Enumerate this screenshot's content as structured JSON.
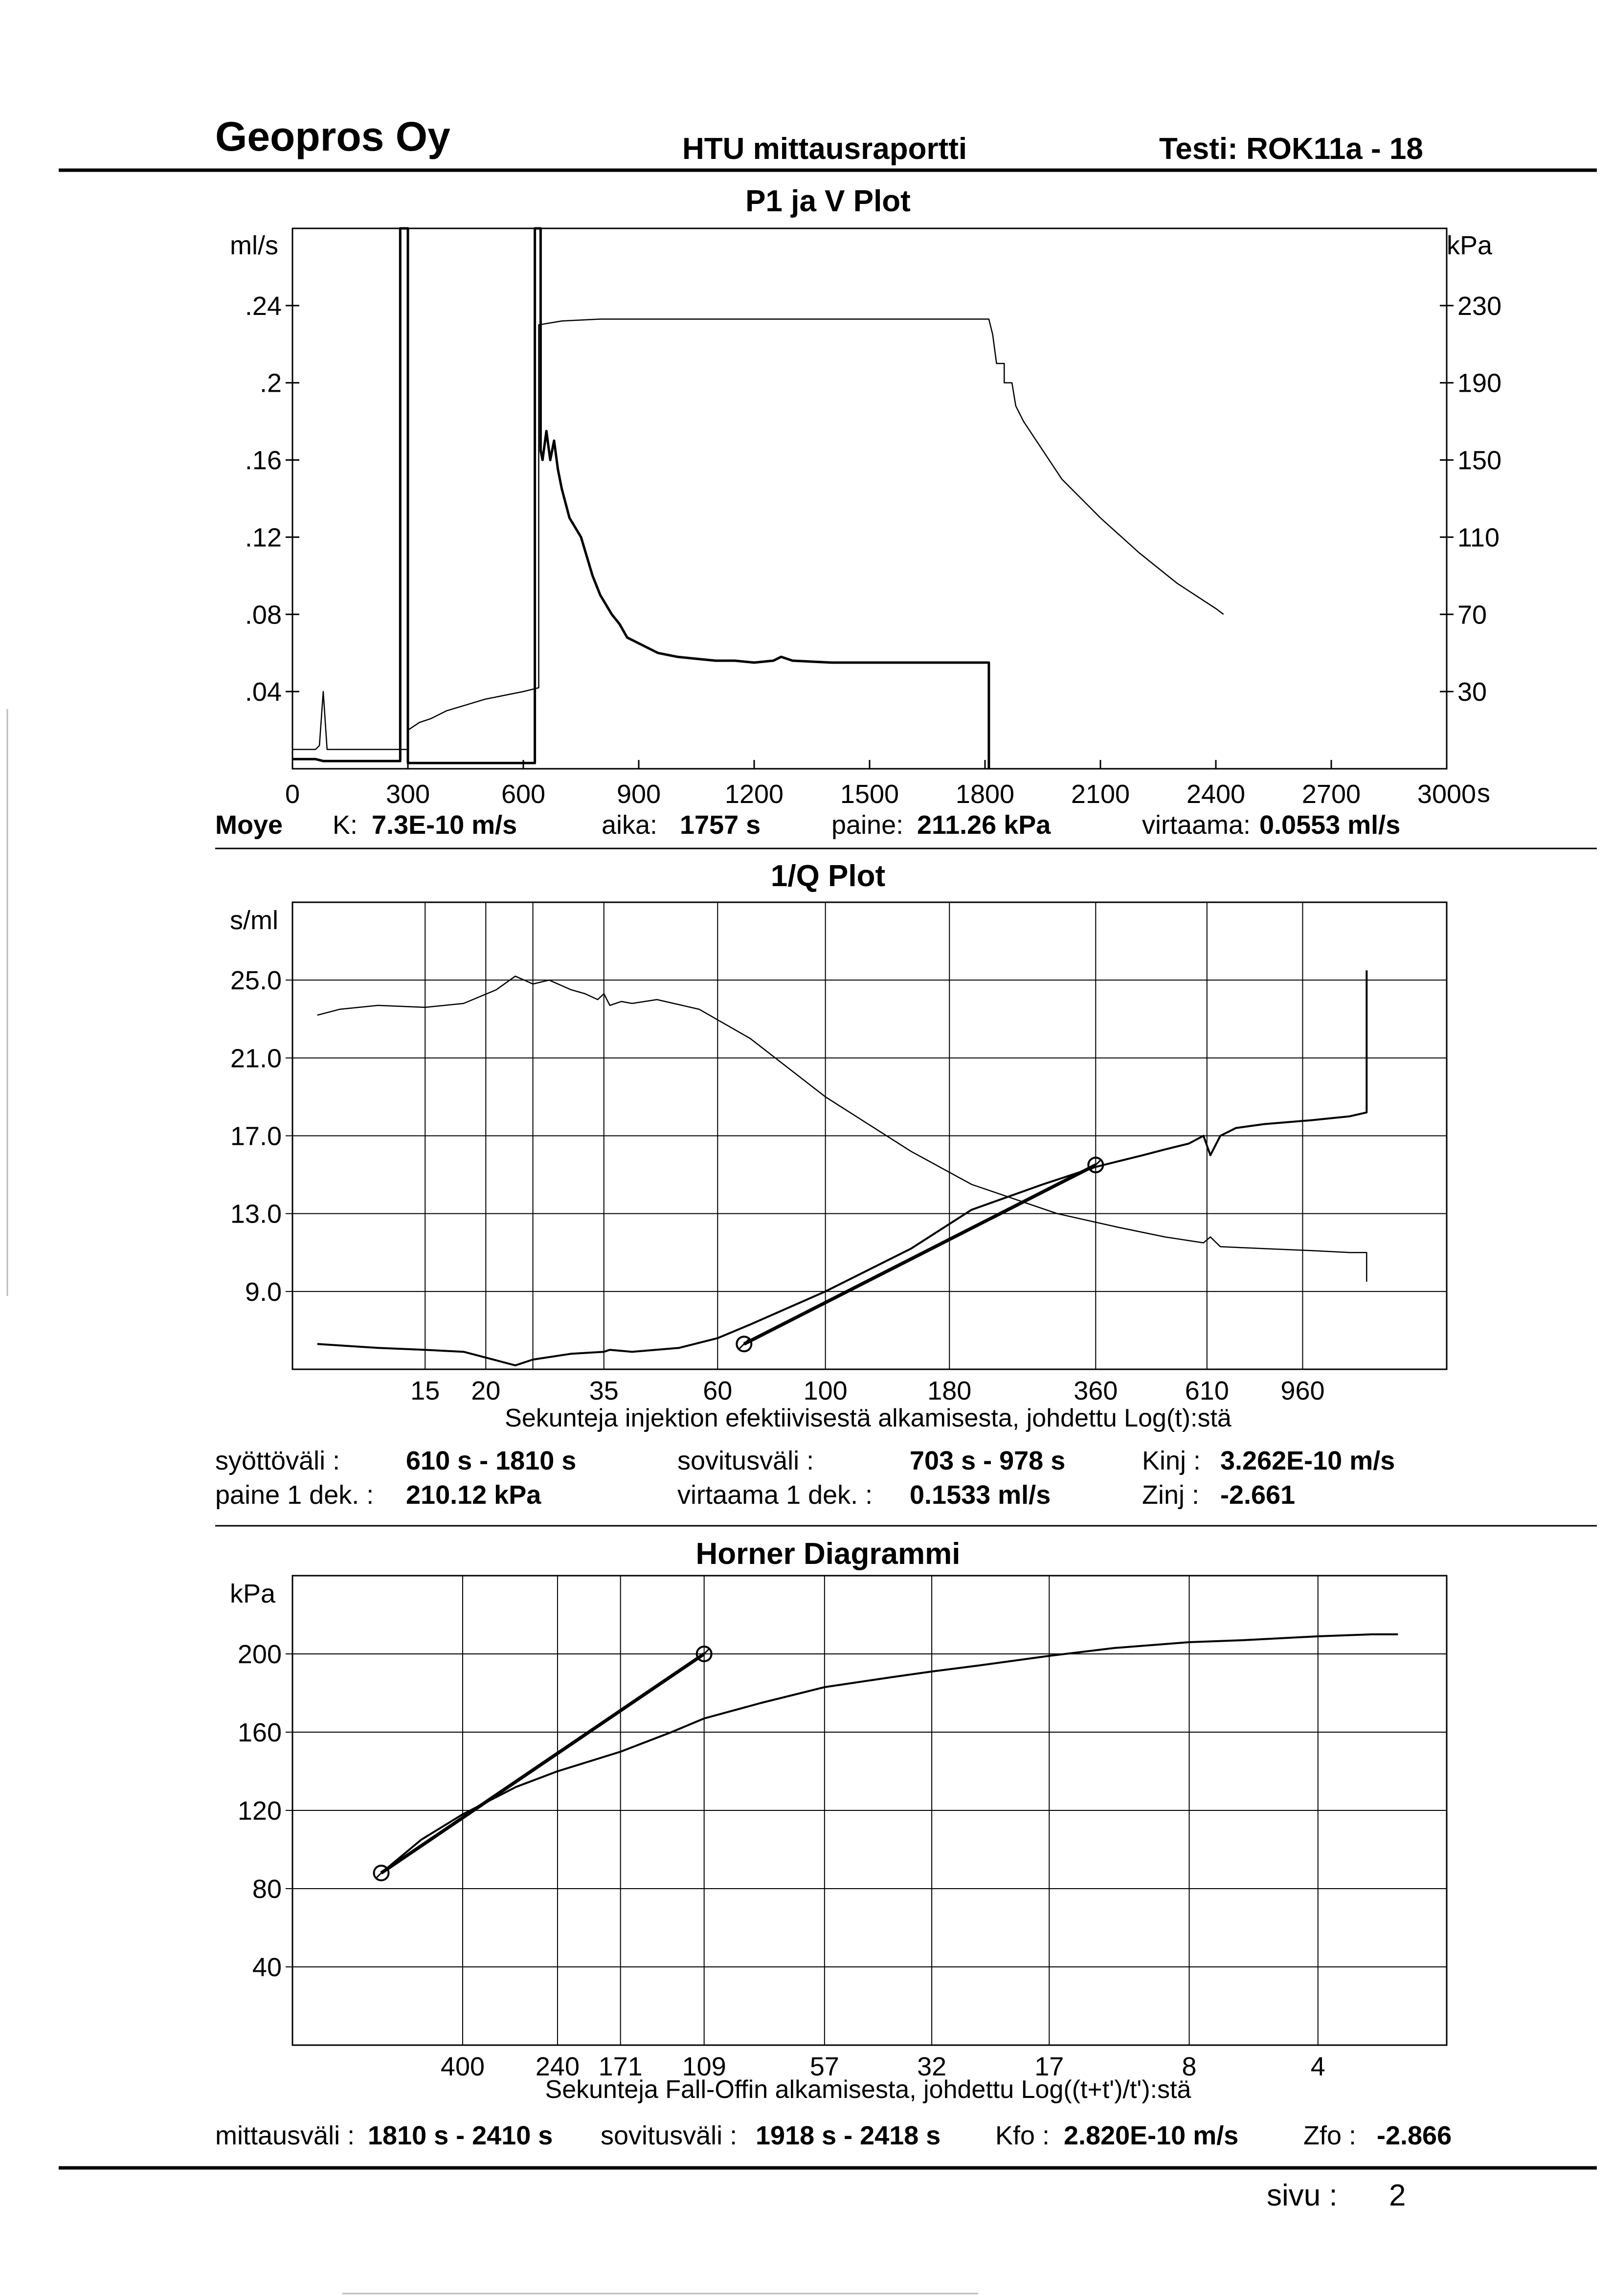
{
  "header": {
    "company": "Geopros Oy",
    "report": "HTU mittausraportti",
    "test": "Testi: ROK11a - 18"
  },
  "page": {
    "label": "sivu :",
    "number": "2"
  },
  "chart_data": [
    {
      "type": "line",
      "title": "P1 ja V Plot",
      "y_left_unit": "ml/s",
      "y_right_unit": "kPa",
      "x_unit": "s",
      "xlim": [
        0,
        3000
      ],
      "y_left_lim": [
        0,
        0.28
      ],
      "y_right_lim": [
        -10,
        270
      ],
      "x_ticks": [
        "0",
        "300",
        "600",
        "900",
        "1200",
        "1500",
        "1800",
        "2100",
        "2400",
        "2700",
        "3000"
      ],
      "y_left_ticks": [
        ".24",
        ".2",
        ".16",
        ".12",
        ".08",
        ".04"
      ],
      "y_left_tick_values": [
        0.24,
        0.2,
        0.16,
        0.12,
        0.08,
        0.04
      ],
      "y_right_ticks": [
        "230",
        "190",
        "150",
        "110",
        "70",
        "30"
      ],
      "y_right_tick_values": [
        230,
        190,
        150,
        110,
        70,
        30
      ],
      "series": [
        {
          "axis": "right",
          "style": "thin",
          "x": [
            0,
            20,
            60,
            70,
            80,
            90,
            270,
            300,
            300,
            330,
            360,
            400,
            450,
            500,
            550,
            600,
            640,
            640,
            700,
            800,
            1000,
            1200,
            1400,
            1600,
            1750,
            1810,
            1820,
            1830,
            1850,
            1850,
            1870,
            1880,
            1900,
            1950,
            2000,
            2100,
            2200,
            2300,
            2400,
            2420
          ],
          "y": [
            0,
            0,
            0,
            2,
            30,
            0,
            0,
            0,
            10,
            14,
            16,
            20,
            23,
            26,
            28,
            30,
            32,
            220,
            222,
            223,
            223,
            223,
            223,
            223,
            223,
            223,
            215,
            200,
            200,
            190,
            190,
            178,
            170,
            155,
            140,
            120,
            102,
            86,
            73,
            70
          ]
        },
        {
          "axis": "left",
          "style": "thick",
          "x": [
            0,
            60,
            80,
            90,
            270,
            280,
            280,
            300,
            300,
            620,
            630,
            630,
            645,
            645,
            650,
            660,
            670,
            680,
            690,
            700,
            720,
            750,
            780,
            800,
            830,
            850,
            870,
            900,
            950,
            1000,
            1050,
            1100,
            1150,
            1200,
            1250,
            1270,
            1300,
            1400,
            1500,
            1600,
            1700,
            1800,
            1810,
            1810
          ],
          "y": [
            0.005,
            0.005,
            0.004,
            0.004,
            0.004,
            0.004,
            0.28,
            0.28,
            0.003,
            0.003,
            0.003,
            0.28,
            0.28,
            0.165,
            0.16,
            0.175,
            0.16,
            0.17,
            0.155,
            0.145,
            0.13,
            0.12,
            0.1,
            0.09,
            0.08,
            0.075,
            0.068,
            0.065,
            0.06,
            0.058,
            0.057,
            0.056,
            0.056,
            0.055,
            0.056,
            0.058,
            0.056,
            0.055,
            0.055,
            0.055,
            0.055,
            0.055,
            0.055,
            0
          ]
        }
      ],
      "footer": {
        "name": "Moye",
        "k_label": "K:",
        "k_value": "7.3E-10 m/s",
        "aika_label": "aika:",
        "aika_value": "1757 s",
        "paine_label": "paine:",
        "paine_value": "211.26 kPa",
        "virtaama_label": "virtaama:",
        "virtaama_value": "0.0553 ml/s"
      }
    },
    {
      "type": "line",
      "title": "1/Q Plot",
      "y_unit": "s/ml",
      "x_scale": "log",
      "xlabel": "Sekunteja injektion efektiivisestä alkamisesta, johdettu Log(t):stä",
      "xlim": [
        8,
        1900
      ],
      "ylim": [
        5,
        29
      ],
      "x_ticks": [
        "15",
        "20",
        "35",
        "60",
        "100",
        "180",
        "360",
        "610",
        "960"
      ],
      "x_tick_values": [
        15,
        20,
        35,
        60,
        100,
        180,
        360,
        610,
        960
      ],
      "x_grid_values": [
        15,
        20,
        25,
        35,
        60,
        100,
        180,
        360,
        610,
        960
      ],
      "y_ticks": [
        "25.0",
        "21.0",
        "17.0",
        "13.0",
        "9.0"
      ],
      "y_tick_values": [
        25,
        21,
        17,
        13,
        9
      ],
      "series": [
        {
          "style": "thin",
          "x": [
            9,
            10,
            12,
            15,
            18,
            21,
            23,
            25,
            27,
            30,
            32,
            34,
            35,
            36,
            38,
            40,
            45,
            55,
            70,
            100,
            150,
            200,
            300,
            400,
            500,
            600,
            620,
            650,
            800,
            1000,
            1200,
            1300,
            1300
          ],
          "y": [
            23.2,
            23.5,
            23.7,
            23.6,
            23.8,
            24.5,
            25.2,
            24.8,
            25.0,
            24.5,
            24.3,
            24.0,
            24.3,
            23.7,
            23.9,
            23.8,
            24.0,
            23.5,
            22.0,
            19.0,
            16.2,
            14.5,
            13.0,
            12.3,
            11.8,
            11.5,
            11.8,
            11.3,
            11.2,
            11.1,
            11.0,
            11.0,
            9.5
          ]
        },
        {
          "style": "thick",
          "x": [
            9,
            12,
            15,
            18,
            20,
            23,
            25,
            30,
            35,
            36,
            40,
            50,
            60,
            70,
            100,
            150,
            200,
            280,
            360,
            450,
            500,
            560,
            600,
            620,
            650,
            700,
            800,
            1000,
            1200,
            1300,
            1300
          ],
          "y": [
            6.3,
            6.1,
            6.0,
            5.9,
            5.6,
            5.2,
            5.5,
            5.8,
            5.9,
            6.0,
            5.9,
            6.1,
            6.6,
            7.3,
            9.0,
            11.2,
            13.2,
            14.5,
            15.4,
            16.0,
            16.3,
            16.6,
            17.0,
            16.0,
            17.0,
            17.4,
            17.6,
            17.8,
            18.0,
            18.2,
            25.5
          ]
        },
        {
          "style": "fit",
          "x": [
            68,
            360
          ],
          "y": [
            6.3,
            15.5
          ]
        }
      ],
      "footer": {
        "syotto_label": "syöttöväli :",
        "syotto_value": "610 s -  1810 s",
        "sovitus_label": "sovitusväli :",
        "sovitus_value": "703 s  -   978 s",
        "kinj_label": "Kinj :",
        "kinj_value": "3.262E-10 m/s",
        "paine_label": "paine 1 dek. :",
        "paine_value": "210.12 kPa",
        "virtaama_label": "virtaama 1 dek. :",
        "virtaama_value": "0.1533 ml/s",
        "zinj_label": "Zinj :",
        "zinj_value": "-2.661"
      }
    },
    {
      "type": "line",
      "title": "Horner Diagrammi",
      "y_unit": "kPa",
      "x_scale": "log-reversed",
      "xlabel": "Sekunteja Fall-Offin alkamisesta, johdettu Log((t+t')/t'):stä",
      "xlim": [
        1000,
        2
      ],
      "ylim": [
        0,
        240
      ],
      "x_ticks": [
        "400",
        "240",
        "171",
        "109",
        "57",
        "32",
        "17",
        "8",
        "4"
      ],
      "x_tick_values": [
        400,
        240,
        171,
        109,
        57,
        32,
        17,
        8,
        4
      ],
      "x_grid_values": [
        400,
        240,
        171,
        109,
        57,
        32,
        17,
        8,
        4
      ],
      "y_ticks": [
        "200",
        "160",
        "120",
        "80",
        "40"
      ],
      "y_tick_values": [
        200,
        160,
        120,
        80,
        40
      ],
      "series": [
        {
          "style": "thick",
          "x": [
            620,
            500,
            400,
            300,
            240,
            171,
            130,
            109,
            80,
            57,
            40,
            32,
            25,
            17,
            12,
            8,
            6,
            4,
            3,
            2.6
          ],
          "y": [
            88,
            105,
            118,
            132,
            140,
            150,
            160,
            167,
            175,
            183,
            188,
            191,
            194,
            199,
            203,
            206,
            207,
            209,
            210,
            210
          ]
        },
        {
          "style": "fit",
          "x": [
            620,
            109
          ],
          "y": [
            88,
            200
          ]
        }
      ],
      "footer": {
        "mittaus_label": "mittausväli :",
        "mittaus_value": "1810 s -  2410 s",
        "sovitus_label": "sovitusväli :",
        "sovitus_value": "1918 s -  2418 s",
        "kfo_label": "Kfo :",
        "kfo_value": "2.820E-10 m/s",
        "zfo_label": "Zfo :",
        "zfo_value": "-2.866"
      }
    }
  ]
}
